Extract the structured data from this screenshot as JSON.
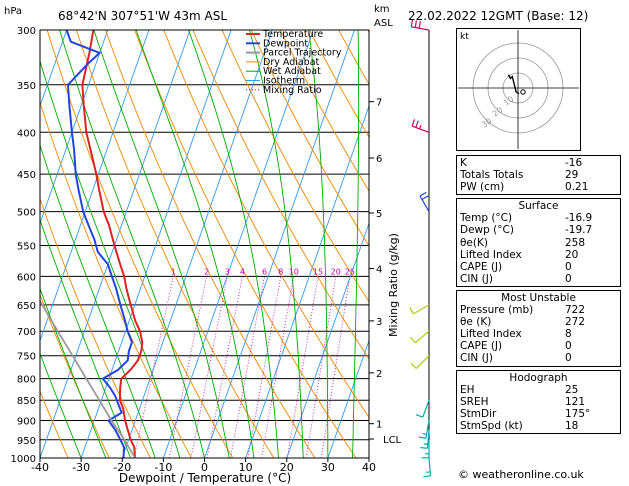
{
  "header": {
    "location": "68°42'N  307°51'W  43m  ASL",
    "datetime": "22.02.2022  12GMT  (Base: 12)",
    "left_unit": "hPa",
    "right_unit_1": "km",
    "right_unit_2": "ASL"
  },
  "chart_data": {
    "type": "line",
    "title": "Skew-T log-P sounding",
    "xlabel": "Dewpoint / Temperature (°C)",
    "ylabel": "hPa",
    "y2label": "Mixing Ratio (g/kg)",
    "xlim": [
      -40,
      40
    ],
    "ylim": [
      1000,
      300
    ],
    "y_log": true,
    "x_ticks": [
      -40,
      -30,
      -20,
      -10,
      0,
      10,
      20,
      30,
      40
    ],
    "p_ticks": [
      300,
      350,
      400,
      450,
      500,
      550,
      600,
      650,
      700,
      750,
      800,
      850,
      900,
      950,
      1000
    ],
    "km_ticks": [
      {
        "km": 1,
        "p": 908
      },
      {
        "km": 2,
        "p": 787
      },
      {
        "km": 3,
        "p": 680
      },
      {
        "km": 4,
        "p": 587
      },
      {
        "km": 5,
        "p": 502
      },
      {
        "km": 6,
        "p": 430
      },
      {
        "km": 7,
        "p": 367
      }
    ],
    "lcl_p": 948,
    "lcl_label": "LCL",
    "mixing_ratios": [
      1,
      2,
      3,
      4,
      6,
      8,
      10,
      15,
      20,
      25
    ],
    "mixing_label_p": 600,
    "legend": [
      "Temperature",
      "Dewpoint",
      "Parcel Trajectory",
      "Dry Adiabat",
      "Wet Adiabat",
      "Isotherm",
      "Mixing Ratio"
    ],
    "colors": {
      "temperature": "#dd2222",
      "dewpoint": "#2244dd",
      "parcel": "#999999",
      "dry_adiabat": "#ee8800",
      "wet_adiabat": "#00aa00",
      "isotherm": "#3399ee",
      "mixing_ratio": "#cc00aa"
    },
    "series": [
      {
        "name": "Temperature",
        "p": [
          1000,
          970,
          950,
          925,
          900,
          870,
          850,
          820,
          800,
          780,
          760,
          740,
          722,
          700,
          680,
          650,
          620,
          600,
          580,
          560,
          540,
          520,
          500,
          470,
          450,
          420,
          400,
          370,
          350,
          320,
          300
        ],
        "t": [
          -16.9,
          -18.0,
          -19.5,
          -21.0,
          -22.5,
          -24.0,
          -25.5,
          -26.5,
          -27.0,
          -25.5,
          -24.5,
          -24.5,
          -25.0,
          -26.5,
          -28.5,
          -31.0,
          -33.5,
          -35.0,
          -37.0,
          -39.0,
          -41.0,
          -43.0,
          -45.5,
          -48.5,
          -50.5,
          -54.0,
          -56.5,
          -59.5,
          -61.5,
          -62.5,
          -63.5
        ]
      },
      {
        "name": "Dewpoint",
        "p": [
          1000,
          970,
          950,
          925,
          900,
          880,
          860,
          840,
          820,
          800,
          780,
          760,
          740,
          722,
          700,
          680,
          650,
          620,
          600,
          580,
          560,
          540,
          520,
          500,
          470,
          450,
          420,
          400,
          370,
          350,
          330,
          320,
          310,
          300
        ],
        "t": [
          -19.7,
          -20.5,
          -22.0,
          -24.0,
          -26.5,
          -24.0,
          -25.5,
          -27.0,
          -29.0,
          -31.5,
          -28.5,
          -27.0,
          -27.5,
          -27.5,
          -29.5,
          -31.0,
          -33.5,
          -36.0,
          -38.0,
          -40.0,
          -43.5,
          -45.5,
          -48.0,
          -50.5,
          -53.5,
          -55.5,
          -58.0,
          -60.0,
          -63.0,
          -65.0,
          -62.0,
          -60.0,
          -68.0,
          -70.0
        ]
      },
      {
        "name": "Parcel Trajectory",
        "p": [
          1000,
          950,
          900,
          850,
          800,
          750,
          700,
          650,
          600,
          550
        ],
        "t": [
          -16.9,
          -21.0,
          -25.8,
          -30.5,
          -35.5,
          -40.8,
          -46.5,
          -52.5,
          -59.0,
          -66.0
        ]
      }
    ],
    "wind_barbs": [
      {
        "p": 1000,
        "dir": 175,
        "speed": 15
      },
      {
        "p": 950,
        "dir": 180,
        "speed": 15
      },
      {
        "p": 925,
        "dir": 185,
        "speed": 15
      },
      {
        "p": 900,
        "dir": 190,
        "speed": 15
      },
      {
        "p": 850,
        "dir": 200,
        "speed": 10
      },
      {
        "p": 750,
        "dir": 225,
        "speed": 10
      },
      {
        "p": 700,
        "dir": 230,
        "speed": 10
      },
      {
        "p": 650,
        "dir": 240,
        "speed": 10
      },
      {
        "p": 500,
        "dir": 330,
        "speed": 20
      },
      {
        "p": 400,
        "dir": 290,
        "speed": 25
      },
      {
        "p": 300,
        "dir": 280,
        "speed": 30
      }
    ],
    "hodograph": {
      "label": "kt",
      "ring_labels": [
        "10",
        "20",
        "30"
      ],
      "points": [
        [
          0.5,
          -3
        ],
        [
          -1,
          -2
        ],
        [
          -2,
          2
        ],
        [
          -3,
          6
        ],
        [
          -4,
          5
        ],
        [
          -5,
          7
        ]
      ]
    }
  },
  "indices": {
    "top": [
      {
        "label": "K",
        "value": "-16"
      },
      {
        "label": "Totals Totals",
        "value": "29"
      },
      {
        "label": "PW (cm)",
        "value": "0.21"
      }
    ],
    "surface": {
      "title": "Surface",
      "rows": [
        {
          "label": "Temp (°C)",
          "value": "-16.9"
        },
        {
          "label": "Dewp (°C)",
          "value": "-19.7"
        },
        {
          "label": "θe(K)",
          "value": "258"
        },
        {
          "label": "Lifted Index",
          "value": "20"
        },
        {
          "label": "CAPE (J)",
          "value": "0"
        },
        {
          "label": "CIN (J)",
          "value": "0"
        }
      ]
    },
    "most_unstable": {
      "title": "Most Unstable",
      "rows": [
        {
          "label": "Pressure (mb)",
          "value": "722"
        },
        {
          "label": "θe (K)",
          "value": "272"
        },
        {
          "label": "Lifted Index",
          "value": "8"
        },
        {
          "label": "CAPE (J)",
          "value": "0"
        },
        {
          "label": "CIN (J)",
          "value": "0"
        }
      ]
    },
    "hodograph": {
      "title": "Hodograph",
      "rows": [
        {
          "label": "EH",
          "value": "25"
        },
        {
          "label": "SREH",
          "value": "121"
        },
        {
          "label": "StmDir",
          "value": "175°"
        },
        {
          "label": "StmSpd (kt)",
          "value": "18"
        }
      ]
    }
  },
  "footer": "© weatheronline.co.uk"
}
